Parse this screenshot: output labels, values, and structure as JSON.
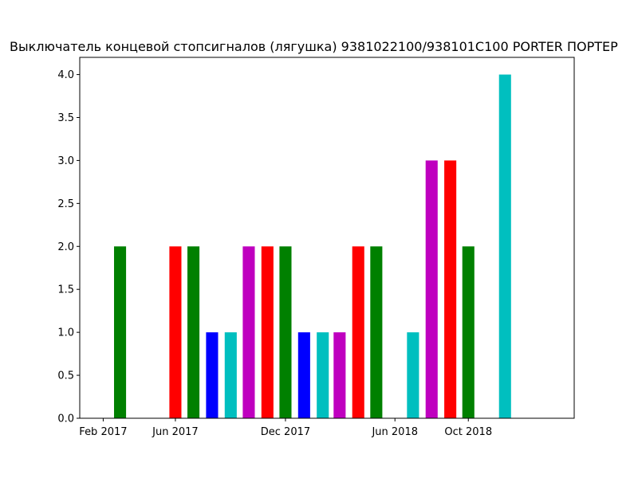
{
  "chart_data": {
    "type": "bar",
    "title": "Выключатель концевой стопсигналов (лягушка) 9381022100/938101С100 PORTER ПОРТЕР",
    "xlabel": "",
    "ylabel": "",
    "x_axis_type": "date",
    "xlim": [
      "2016-12-24",
      "2019-03-26"
    ],
    "ylim": [
      0,
      4.2
    ],
    "x_ticks": [
      {
        "date": "2017-02-01",
        "label": "Feb 2017"
      },
      {
        "date": "2017-06-01",
        "label": "Jun 2017"
      },
      {
        "date": "2017-12-01",
        "label": "Dec 2017"
      },
      {
        "date": "2018-06-01",
        "label": "Jun 2018"
      },
      {
        "date": "2018-10-01",
        "label": "Oct 2018"
      }
    ],
    "y_ticks": [
      {
        "value": 0.0,
        "label": "0.0"
      },
      {
        "value": 0.5,
        "label": "0.5"
      },
      {
        "value": 1.0,
        "label": "1.0"
      },
      {
        "value": 1.5,
        "label": "1.5"
      },
      {
        "value": 2.0,
        "label": "2.0"
      },
      {
        "value": 2.5,
        "label": "2.5"
      },
      {
        "value": 3.0,
        "label": "3.0"
      },
      {
        "value": 3.5,
        "label": "3.5"
      },
      {
        "value": 4.0,
        "label": "4.0"
      }
    ],
    "grid": false,
    "legend": "none",
    "bars": [
      {
        "date": "2017-03-01",
        "value": 2,
        "color": "#008000"
      },
      {
        "date": "2017-06-01",
        "value": 2,
        "color": "#ff0000"
      },
      {
        "date": "2017-07-01",
        "value": 2,
        "color": "#008000"
      },
      {
        "date": "2017-08-01",
        "value": 1,
        "color": "#0000ff"
      },
      {
        "date": "2017-09-01",
        "value": 1,
        "color": "#00bfbf"
      },
      {
        "date": "2017-10-01",
        "value": 2,
        "color": "#bf00bf"
      },
      {
        "date": "2017-11-01",
        "value": 2,
        "color": "#ff0000"
      },
      {
        "date": "2017-12-01",
        "value": 2,
        "color": "#008000"
      },
      {
        "date": "2018-01-01",
        "value": 1,
        "color": "#0000ff"
      },
      {
        "date": "2018-02-01",
        "value": 1,
        "color": "#00bfbf"
      },
      {
        "date": "2018-03-01",
        "value": 1,
        "color": "#bf00bf"
      },
      {
        "date": "2018-04-01",
        "value": 2,
        "color": "#ff0000"
      },
      {
        "date": "2018-05-01",
        "value": 2,
        "color": "#008000"
      },
      {
        "date": "2018-07-01",
        "value": 1,
        "color": "#00bfbf"
      },
      {
        "date": "2018-08-01",
        "value": 3,
        "color": "#bf00bf"
      },
      {
        "date": "2018-09-01",
        "value": 3,
        "color": "#ff0000"
      },
      {
        "date": "2018-10-01",
        "value": 2,
        "color": "#008000"
      },
      {
        "date": "2018-12-01",
        "value": 4,
        "color": "#00bfbf"
      }
    ]
  }
}
